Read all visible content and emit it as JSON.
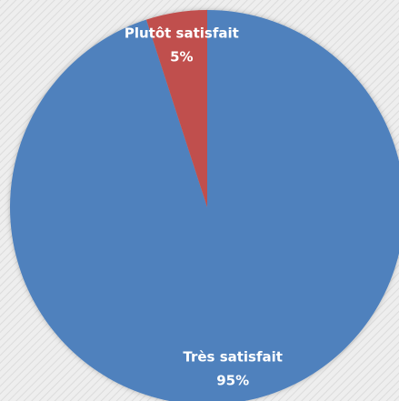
{
  "chart_data": {
    "type": "pie",
    "categories": [
      "Très satisfait",
      "Plutôt satisfait"
    ],
    "values": [
      95,
      5
    ],
    "value_labels": [
      "95%",
      "5%"
    ],
    "colors": [
      "#4f81bd",
      "#c0504d"
    ]
  }
}
